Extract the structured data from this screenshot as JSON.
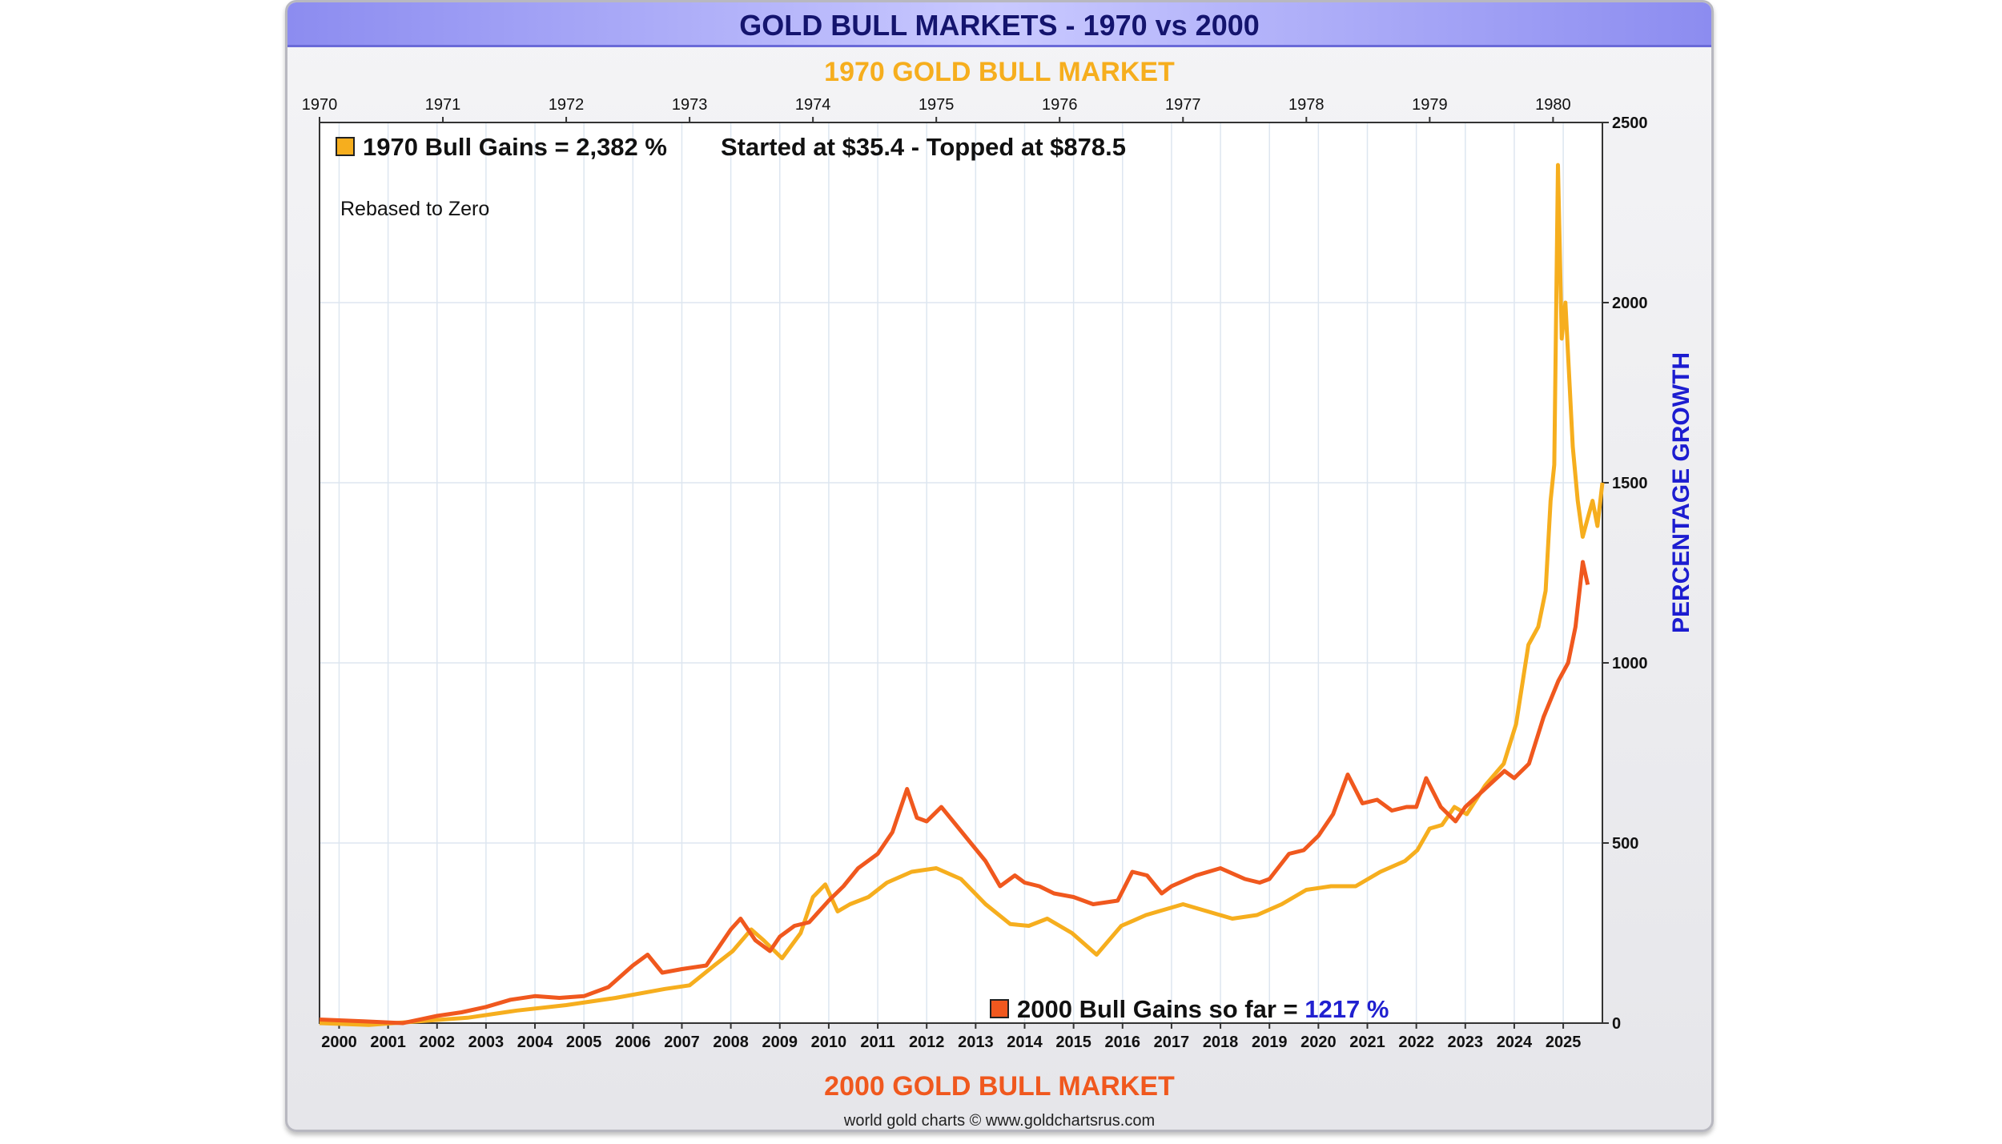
{
  "title": "GOLD BULL MARKETS - 1970 vs 2000",
  "top_axis_title": "1970 GOLD BULL MARKET",
  "bottom_axis_title": "2000 GOLD BULL MARKET",
  "credit": "world gold charts © www.goldchartsrus.com",
  "note": "Rebased to Zero",
  "legend": {
    "series_1970": "1970 Bull Gains = 2,382 %",
    "series_1970_info": "Started at $35.4 - Topped at $878.5",
    "series_2000": "2000 Bull Gains so far =",
    "series_2000_value": "1217 %"
  },
  "colors": {
    "series_1970": "#f6ae1e",
    "series_2000": "#f0581e",
    "ylabel": "#1c1cd0",
    "grid": "#dde6f0"
  },
  "chart_data": {
    "type": "line",
    "title": "GOLD BULL MARKETS - 1970 vs 2000",
    "ylabel": "PERCENTAGE GROWTH",
    "ylim": [
      0,
      2500
    ],
    "yticks": [
      "0",
      "500",
      "1000",
      "1500",
      "2000",
      "2500"
    ],
    "top_axis": {
      "label": "1970 GOLD BULL MARKET",
      "range": [
        1970.0,
        1980.4
      ],
      "ticks": [
        "1970",
        "1971",
        "1972",
        "1973",
        "1974",
        "1975",
        "1976",
        "1977",
        "1978",
        "1979",
        "1980"
      ]
    },
    "bottom_axis": {
      "label": "2000 GOLD BULL MARKET",
      "range": [
        1999.6,
        2025.8
      ],
      "ticks": [
        "2000",
        "2001",
        "2002",
        "2003",
        "2004",
        "2005",
        "2006",
        "2007",
        "2008",
        "2009",
        "2010",
        "2011",
        "2012",
        "2013",
        "2014",
        "2015",
        "2016",
        "2017",
        "2018",
        "2019",
        "2020",
        "2021",
        "2022",
        "2023",
        "2024",
        "2025"
      ]
    },
    "grid": true,
    "series": [
      {
        "name": "1970 Bull Gains",
        "axis": "top",
        "x": [
          1970.0,
          1970.4,
          1970.8,
          1971.2,
          1971.6,
          1972.0,
          1972.4,
          1972.8,
          1973.0,
          1973.2,
          1973.35,
          1973.5,
          1973.6,
          1973.75,
          1973.9,
          1974.0,
          1974.1,
          1974.2,
          1974.3,
          1974.45,
          1974.6,
          1974.8,
          1975.0,
          1975.2,
          1975.4,
          1975.6,
          1975.75,
          1975.9,
          1976.1,
          1976.3,
          1976.5,
          1976.6,
          1976.7,
          1976.8,
          1977.0,
          1977.2,
          1977.4,
          1977.6,
          1977.8,
          1978.0,
          1978.2,
          1978.4,
          1978.6,
          1978.8,
          1978.9,
          1979.0,
          1979.1,
          1979.2,
          1979.3,
          1979.45,
          1979.6,
          1979.7,
          1979.8,
          1979.88,
          1979.94,
          1979.98,
          1980.01,
          1980.04,
          1980.07,
          1980.1,
          1980.13,
          1980.16,
          1980.2,
          1980.24,
          1980.28,
          1980.32,
          1980.36,
          1980.4
        ],
        "values": [
          0,
          -5,
          5,
          15,
          35,
          50,
          70,
          95,
          105,
          160,
          200,
          260,
          230,
          180,
          250,
          350,
          385,
          310,
          330,
          350,
          390,
          420,
          430,
          400,
          330,
          275,
          270,
          290,
          250,
          190,
          270,
          285,
          300,
          310,
          330,
          310,
          290,
          300,
          330,
          370,
          380,
          380,
          420,
          450,
          480,
          540,
          550,
          600,
          580,
          660,
          720,
          830,
          1050,
          1100,
          1200,
          1450,
          1550,
          2382,
          1900,
          2000,
          1800,
          1600,
          1450,
          1350,
          1400,
          1450,
          1380,
          1500
        ]
      },
      {
        "name": "2000 Bull Gains",
        "axis": "bottom",
        "x": [
          1999.6,
          2000.5,
          2001.3,
          2002.0,
          2002.5,
          2003.0,
          2003.5,
          2004.0,
          2004.5,
          2005.0,
          2005.5,
          2006.0,
          2006.3,
          2006.6,
          2007.0,
          2007.5,
          2008.0,
          2008.2,
          2008.5,
          2008.8,
          2009.0,
          2009.3,
          2009.6,
          2010.0,
          2010.3,
          2010.6,
          2011.0,
          2011.3,
          2011.6,
          2011.8,
          2012.0,
          2012.3,
          2012.6,
          2012.9,
          2013.2,
          2013.5,
          2013.8,
          2014.0,
          2014.3,
          2014.6,
          2015.0,
          2015.4,
          2015.9,
          2016.2,
          2016.5,
          2016.8,
          2017.0,
          2017.5,
          2018.0,
          2018.5,
          2018.8,
          2019.0,
          2019.4,
          2019.7,
          2020.0,
          2020.3,
          2020.6,
          2020.9,
          2021.2,
          2021.5,
          2021.8,
          2022.0,
          2022.2,
          2022.5,
          2022.8,
          2023.0,
          2023.4,
          2023.8,
          2024.0,
          2024.3,
          2024.6,
          2024.9,
          2025.1,
          2025.25,
          2025.4,
          2025.5
        ],
        "values": [
          10,
          5,
          0,
          20,
          30,
          45,
          65,
          75,
          70,
          75,
          100,
          160,
          190,
          140,
          150,
          160,
          260,
          290,
          230,
          200,
          240,
          270,
          280,
          340,
          380,
          430,
          470,
          530,
          650,
          570,
          560,
          600,
          550,
          500,
          450,
          380,
          410,
          390,
          380,
          360,
          350,
          330,
          340,
          420,
          410,
          360,
          380,
          410,
          430,
          400,
          390,
          400,
          470,
          480,
          520,
          580,
          690,
          610,
          620,
          590,
          600,
          600,
          680,
          600,
          560,
          600,
          650,
          700,
          680,
          720,
          850,
          950,
          1000,
          1100,
          1280,
          1217
        ]
      }
    ]
  }
}
